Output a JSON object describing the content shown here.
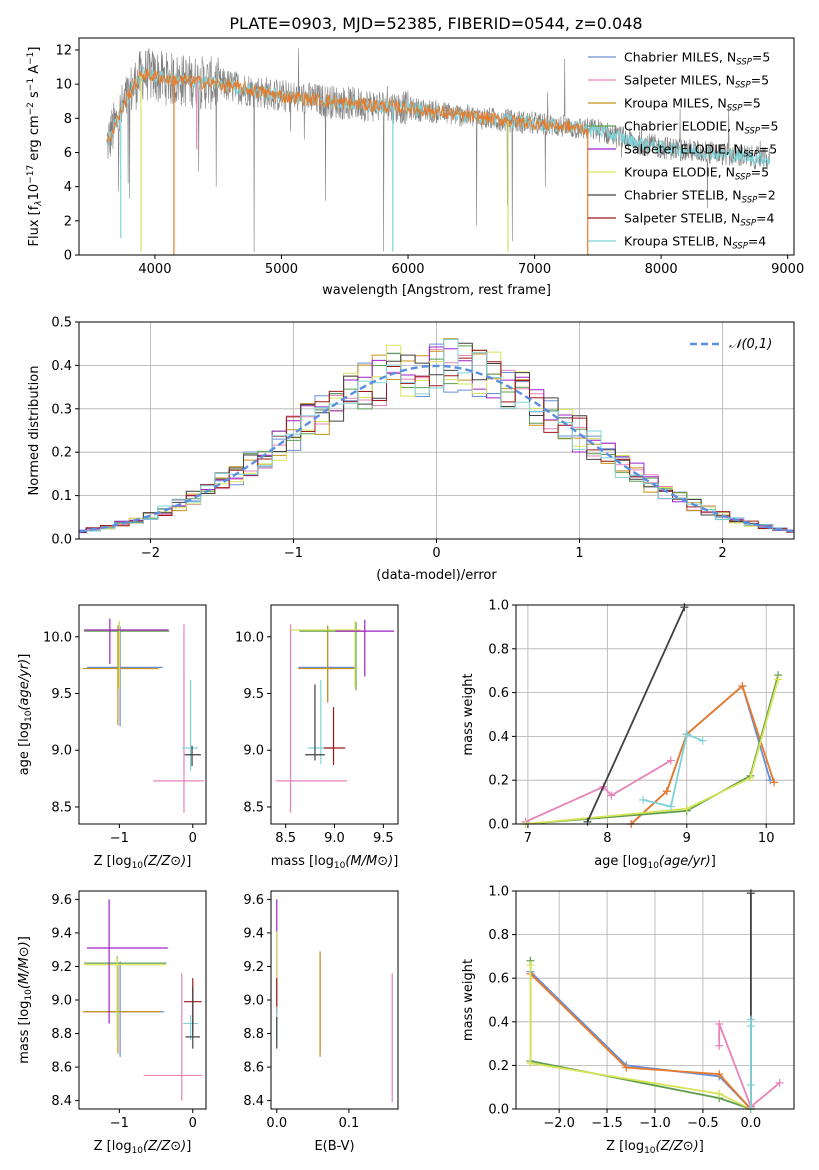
{
  "title": "PLATE=0903, MJD=52385, FIBERID=0544, z=0.048",
  "colors": {
    "Chabrier MILES": "#6a8fd8",
    "Salpeter MILES": "#e882b8",
    "Kroupa MILES": "#c8901a",
    "Chabrier ELODIE": "#5f9e4f",
    "Salpeter ELODIE": "#a021c8",
    "Kroupa ELODIE": "#d8e35a",
    "Chabrier STELIB": "#404040",
    "Salpeter STELIB": "#a01818",
    "Kroupa STELIB": "#7fd3d8",
    "model_line_orange": "#e87a2a",
    "observed_spectrum": "#808080"
  },
  "legend_labels": [
    {
      "name": "Chabrier MILES",
      "label": "Chabrier MILES, N",
      "sub": "SSP",
      "tail": "=5"
    },
    {
      "name": "Salpeter MILES",
      "label": "Salpeter MILES, N",
      "sub": "SSP",
      "tail": "=5"
    },
    {
      "name": "Kroupa MILES",
      "label": "Kroupa MILES, N",
      "sub": "SSP",
      "tail": "=5"
    },
    {
      "name": "Chabrier ELODIE",
      "label": "Chabrier ELODIE, N",
      "sub": "SSP",
      "tail": "=5"
    },
    {
      "name": "Salpeter ELODIE",
      "label": "Salpeter ELODIE, N",
      "sub": "SSP",
      "tail": "=5"
    },
    {
      "name": "Kroupa ELODIE",
      "label": "Kroupa ELODIE, N",
      "sub": "SSP",
      "tail": "=5"
    },
    {
      "name": "Chabrier STELIB",
      "label": "Chabrier STELIB, N",
      "sub": "SSP",
      "tail": "=2"
    },
    {
      "name": "Salpeter STELIB",
      "label": "Salpeter STELIB, N",
      "sub": "SSP",
      "tail": "=4"
    },
    {
      "name": "Kroupa STELIB",
      "label": "Kroupa STELIB, N",
      "sub": "SSP",
      "tail": "=4"
    }
  ],
  "chart_data": [
    {
      "type": "line",
      "panel": "spectrum",
      "xlabel": "wavelength [Angstrom, rest frame]",
      "ylabel": "Flux [f",
      "ylabel_parts": [
        "Flux [f",
        "λ",
        "10",
        "−17",
        " erg cm",
        "−2",
        " s",
        "−1",
        " A",
        "−1",
        "]"
      ],
      "xlim": [
        3400,
        9050
      ],
      "ylim": [
        0,
        12.7
      ],
      "xticks": [
        4000,
        5000,
        6000,
        7000,
        8000,
        9000
      ],
      "yticks": [
        0,
        2,
        4,
        6,
        8,
        10,
        12
      ],
      "observed_range": [
        3620,
        8860
      ],
      "continuum_points": [
        [
          3620,
          6.5
        ],
        [
          3800,
          9.5
        ],
        [
          3900,
          10.6
        ],
        [
          4100,
          10.3
        ],
        [
          4500,
          10.0
        ],
        [
          4800,
          9.6
        ],
        [
          5000,
          9.3
        ],
        [
          5500,
          8.9
        ],
        [
          6000,
          8.6
        ],
        [
          6500,
          8.1
        ],
        [
          7000,
          7.7
        ],
        [
          7500,
          7.3
        ],
        [
          7800,
          6.6
        ],
        [
          8000,
          6.3
        ],
        [
          8500,
          5.9
        ],
        [
          8860,
          5.6
        ]
      ],
      "absorption_features": [
        [
          3730,
          1.0
        ],
        [
          3890,
          0.2
        ],
        [
          4150,
          0.0
        ],
        [
          4330,
          6.2
        ],
        [
          5880,
          0.2
        ],
        [
          6790,
          0.2
        ],
        [
          7420,
          0.0
        ]
      ],
      "legend_position": "upper right"
    },
    {
      "type": "bar",
      "panel": "residual_histogram",
      "xlabel": "(data-model)/error",
      "ylabel": "Normed distribution",
      "xlim": [
        -2.5,
        2.5
      ],
      "ylim": [
        0,
        0.5
      ],
      "xticks": [
        -2,
        -1,
        0,
        1,
        2
      ],
      "yticks": [
        0.0,
        0.1,
        0.2,
        0.3,
        0.4,
        0.5
      ],
      "bin_width": 0.1,
      "reference_curve": {
        "name": "𝒩(0,1)",
        "mean": 0,
        "sigma": 1
      },
      "grid": true,
      "legend_position": "upper right"
    },
    {
      "type": "scatter",
      "panel": "age_vs_Z",
      "xlabel": "Z [log10(Z/Z⊙)]",
      "ylabel": "age [log10(age/yr)]",
      "xlim": [
        -1.55,
        0.18
      ],
      "ylim": [
        8.35,
        10.28
      ],
      "xticks": [
        -1,
        0
      ],
      "yticks": [
        8.5,
        9.0,
        9.5,
        10.0
      ],
      "points": [
        {
          "model": "Chabrier MILES",
          "x": -0.99,
          "y": 9.73,
          "xerr": [
            0.45,
            0.58
          ],
          "yerr": [
            0.52,
            0.36
          ]
        },
        {
          "model": "Kroupa MILES",
          "x": -1.02,
          "y": 9.72,
          "xerr": [
            0.48,
            0.55
          ],
          "yerr": [
            0.5,
            0.38
          ]
        },
        {
          "model": "Chabrier ELODIE",
          "x": -1.0,
          "y": 10.05,
          "xerr": [
            0.48,
            0.68
          ],
          "yerr": [
            0.5,
            0.08
          ]
        },
        {
          "model": "Kroupa ELODIE",
          "x": -1.0,
          "y": 10.06,
          "xerr": [
            0.46,
            0.66
          ],
          "yerr": [
            0.52,
            0.08
          ]
        },
        {
          "model": "Salpeter ELODIE",
          "x": -1.13,
          "y": 10.06,
          "xerr": [
            0.35,
            0.8
          ],
          "yerr": [
            0.3,
            0.1
          ]
        },
        {
          "model": "Salpeter MILES",
          "x": -0.12,
          "y": 8.73,
          "xerr": [
            0.42,
            0.27
          ],
          "yerr": [
            0.28,
            1.38
          ]
        },
        {
          "model": "Kroupa STELIB",
          "x": -0.03,
          "y": 9.02,
          "xerr": [
            0.12,
            0.1
          ],
          "yerr": [
            0.2,
            0.6
          ]
        },
        {
          "model": "Chabrier STELIB",
          "x": -0.01,
          "y": 8.96,
          "xerr": [
            0.1,
            0.12
          ],
          "yerr": [
            0.1,
            0.08
          ]
        }
      ]
    },
    {
      "type": "scatter",
      "panel": "age_vs_mass",
      "xlabel": "mass [log10(M/M⊙)]",
      "ylabel": "",
      "xlim": [
        8.35,
        9.65
      ],
      "ylim": [
        8.35,
        10.28
      ],
      "xticks": [
        8.5,
        9.0,
        9.5
      ],
      "yticks": [
        8.5,
        9.0,
        9.5,
        10.0
      ],
      "points": [
        {
          "model": "Chabrier MILES",
          "x": 8.93,
          "y": 9.73,
          "xerr": [
            0.3,
            0.28
          ],
          "yerr": [
            0.3,
            0.36
          ]
        },
        {
          "model": "Kroupa MILES",
          "x": 8.93,
          "y": 9.72,
          "xerr": [
            0.3,
            0.28
          ],
          "yerr": [
            0.3,
            0.38
          ]
        },
        {
          "model": "Chabrier ELODIE",
          "x": 9.22,
          "y": 10.05,
          "xerr": [
            0.58,
            0.08
          ],
          "yerr": [
            0.52,
            0.08
          ]
        },
        {
          "model": "Kroupa ELODIE",
          "x": 9.21,
          "y": 10.06,
          "xerr": [
            0.66,
            0.06
          ],
          "yerr": [
            0.5,
            0.08
          ]
        },
        {
          "model": "Salpeter ELODIE",
          "x": 9.31,
          "y": 10.05,
          "xerr": [
            0.3,
            0.3
          ],
          "yerr": [
            0.4,
            0.1
          ]
        },
        {
          "model": "Salpeter MILES",
          "x": 8.55,
          "y": 8.73,
          "xerr": [
            0.15,
            0.58
          ],
          "yerr": [
            0.28,
            1.38
          ]
        },
        {
          "model": "Kroupa STELIB",
          "x": 8.86,
          "y": 9.02,
          "xerr": [
            0.13,
            0.12
          ],
          "yerr": [
            0.14,
            0.6
          ]
        },
        {
          "model": "Chabrier STELIB",
          "x": 8.8,
          "y": 8.96,
          "xerr": [
            0.1,
            0.1
          ],
          "yerr": [
            0.05,
            0.62
          ]
        },
        {
          "model": "Salpeter STELIB",
          "x": 8.99,
          "y": 9.02,
          "xerr": [
            0.1,
            0.12
          ],
          "yerr": [
            0.15,
            0.36
          ]
        }
      ]
    },
    {
      "type": "line",
      "panel": "mass_weight_vs_age",
      "xlabel": "age [log10(age/yr)]",
      "ylabel": "mass weight",
      "xlim": [
        6.85,
        10.35
      ],
      "ylim": [
        0.0,
        1.0
      ],
      "xticks": [
        7,
        8,
        9,
        10
      ],
      "yticks": [
        0.0,
        0.2,
        0.4,
        0.6,
        0.8,
        1.0
      ],
      "grid": true,
      "series": [
        {
          "name": "Chabrier MILES",
          "x": [
            8.3,
            8.75,
            9.0,
            9.7,
            10.05
          ],
          "y": [
            0.0,
            0.15,
            0.41,
            0.63,
            0.2
          ]
        },
        {
          "name": "Salpeter MILES",
          "x": [
            6.97,
            7.95,
            8.05,
            8.8
          ],
          "y": [
            0.01,
            0.17,
            0.13,
            0.29
          ]
        },
        {
          "name": "Kroupa MILES",
          "x": [
            8.3,
            8.75,
            9.0,
            9.7,
            10.1
          ],
          "y": [
            0.0,
            0.15,
            0.41,
            0.63,
            0.19
          ]
        },
        {
          "name": "Chabrier ELODIE",
          "x": [
            6.97,
            9.0,
            9.8,
            10.15
          ],
          "y": [
            0.0,
            0.06,
            0.22,
            0.68
          ]
        },
        {
          "name": "Kroupa ELODIE",
          "x": [
            6.97,
            9.0,
            9.8,
            10.15
          ],
          "y": [
            0.0,
            0.07,
            0.21,
            0.66
          ]
        },
        {
          "name": "Chabrier STELIB",
          "x": [
            7.75,
            8.97
          ],
          "y": [
            0.01,
            0.99
          ]
        },
        {
          "name": "Kroupa STELIB",
          "x": [
            8.45,
            8.8,
            9.0,
            9.2
          ],
          "y": [
            0.11,
            0.08,
            0.41,
            0.38
          ]
        }
      ]
    },
    {
      "type": "scatter",
      "panel": "mass_vs_Z",
      "xlabel": "Z [log10(Z/Z⊙)]",
      "ylabel": "mass [log10(M/M⊙)]",
      "xlim": [
        -1.55,
        0.18
      ],
      "ylim": [
        8.35,
        9.65
      ],
      "xticks": [
        -1,
        0
      ],
      "yticks": [
        8.4,
        8.6,
        8.8,
        9.0,
        9.2,
        9.4,
        9.6
      ],
      "points": [
        {
          "model": "Chabrier MILES",
          "x": -0.99,
          "y": 8.93,
          "xerr": [
            0.47,
            0.6
          ],
          "yerr": [
            0.27,
            0.3
          ]
        },
        {
          "model": "Kroupa MILES",
          "x": -1.02,
          "y": 8.93,
          "xerr": [
            0.48,
            0.58
          ],
          "yerr": [
            0.25,
            0.28
          ]
        },
        {
          "model": "Chabrier ELODIE",
          "x": -1.03,
          "y": 9.22,
          "xerr": [
            0.45,
            0.67
          ],
          "yerr": [
            0.45,
            0.04
          ]
        },
        {
          "model": "Kroupa ELODIE",
          "x": -1.03,
          "y": 9.21,
          "xerr": [
            0.45,
            0.67
          ],
          "yerr": [
            0.45,
            0.04
          ]
        },
        {
          "model": "Salpeter ELODIE",
          "x": -1.14,
          "y": 9.31,
          "xerr": [
            0.3,
            0.8
          ],
          "yerr": [
            0.45,
            0.29
          ]
        },
        {
          "model": "Salpeter MILES",
          "x": -0.15,
          "y": 8.55,
          "xerr": [
            0.52,
            0.28
          ],
          "yerr": [
            0.15,
            0.61
          ]
        },
        {
          "model": "Kroupa STELIB",
          "x": -0.03,
          "y": 8.86,
          "xerr": [
            0.1,
            0.1
          ],
          "yerr": [
            0.1,
            0.05
          ]
        },
        {
          "model": "Salpeter STELIB",
          "x": 0.0,
          "y": 8.99,
          "xerr": [
            0.12,
            0.12
          ],
          "yerr": [
            0.2,
            0.14
          ]
        },
        {
          "model": "Chabrier STELIB",
          "x": 0.0,
          "y": 8.78,
          "xerr": [
            0.1,
            0.1
          ],
          "yerr": [
            0.07,
            0.3
          ]
        }
      ]
    },
    {
      "type": "scatter",
      "panel": "mass_vs_EBV",
      "xlabel": "E(B-V)",
      "ylabel": "",
      "xlim": [
        -0.008,
        0.168
      ],
      "ylim": [
        8.35,
        9.65
      ],
      "xticks": [
        0.0,
        0.1
      ],
      "yticks": [
        8.4,
        8.6,
        8.8,
        9.0,
        9.2,
        9.4,
        9.6
      ],
      "points": [
        {
          "model": "Chabrier MILES",
          "x": 0.06,
          "y": 8.98,
          "xerr": [
            0,
            0
          ],
          "yerr": [
            0.3,
            0.3
          ]
        },
        {
          "model": "Kroupa MILES",
          "x": 0.06,
          "y": 8.99,
          "xerr": [
            0,
            0
          ],
          "yerr": [
            0.33,
            0.3
          ]
        },
        {
          "model": "Salpeter MILES",
          "x": 0.16,
          "y": 8.78,
          "xerr": [
            0,
            0
          ],
          "yerr": [
            0.39,
            0.38
          ]
        },
        {
          "model": "Salpeter ELODIE",
          "x": 0.0,
          "y": 9.3,
          "xerr": [
            0,
            0
          ],
          "yerr": [
            0.3,
            0.3
          ]
        },
        {
          "model": "Kroupa ELODIE",
          "x": 0.0,
          "y": 9.21,
          "xerr": [
            0,
            0
          ],
          "yerr": [
            0.28,
            0.2
          ]
        },
        {
          "model": "Salpeter STELIB",
          "x": 0.0,
          "y": 9.03,
          "xerr": [
            0,
            0
          ],
          "yerr": [
            0.12,
            0.1
          ]
        },
        {
          "model": "Kroupa STELIB",
          "x": 0.0,
          "y": 8.86,
          "xerr": [
            0,
            0
          ],
          "yerr": [
            0.1,
            0.1
          ]
        },
        {
          "model": "Chabrier STELIB",
          "x": 0.0,
          "y": 8.78,
          "xerr": [
            0,
            0
          ],
          "yerr": [
            0.07,
            0.12
          ]
        }
      ]
    },
    {
      "type": "line",
      "panel": "mass_weight_vs_Z",
      "xlabel": "Z [log10(Z/Z⊙)]",
      "ylabel": "mass weight",
      "xlim": [
        -2.45,
        0.45
      ],
      "ylim": [
        0.0,
        1.0
      ],
      "xticks": [
        -2.0,
        -1.5,
        -1.0,
        -0.5,
        0.0
      ],
      "yticks": [
        0.0,
        0.2,
        0.4,
        0.6,
        0.8,
        1.0
      ],
      "grid": true,
      "series": [
        {
          "name": "Chabrier MILES",
          "x": [
            -2.3,
            -1.3,
            -0.33,
            0.0
          ],
          "y": [
            0.63,
            0.2,
            0.15,
            0.0
          ]
        },
        {
          "name": "Kroupa MILES",
          "x": [
            -2.3,
            -1.3,
            -0.33,
            0.0
          ],
          "y": [
            0.62,
            0.19,
            0.16,
            0.0
          ]
        },
        {
          "name": "Chabrier ELODIE",
          "x": [
            -2.3,
            -2.3,
            -0.33,
            0.0
          ],
          "y": [
            0.68,
            0.22,
            0.05,
            0.0
          ]
        },
        {
          "name": "Kroupa ELODIE",
          "x": [
            -2.3,
            -2.3,
            -0.33,
            0.0
          ],
          "y": [
            0.66,
            0.21,
            0.07,
            0.0
          ]
        },
        {
          "name": "Chabrier STELIB",
          "x": [
            0.0,
            0.0
          ],
          "y": [
            0.01,
            0.99
          ]
        },
        {
          "name": "Salpeter MILES",
          "x": [
            -0.33,
            -0.33,
            0.0,
            0.3
          ],
          "y": [
            0.29,
            0.39,
            0.01,
            0.12
          ]
        },
        {
          "name": "Kroupa STELIB",
          "x": [
            0.0,
            0.0,
            0.0,
            0.0
          ],
          "y": [
            0.0,
            0.38,
            0.41,
            0.11
          ]
        }
      ]
    }
  ]
}
